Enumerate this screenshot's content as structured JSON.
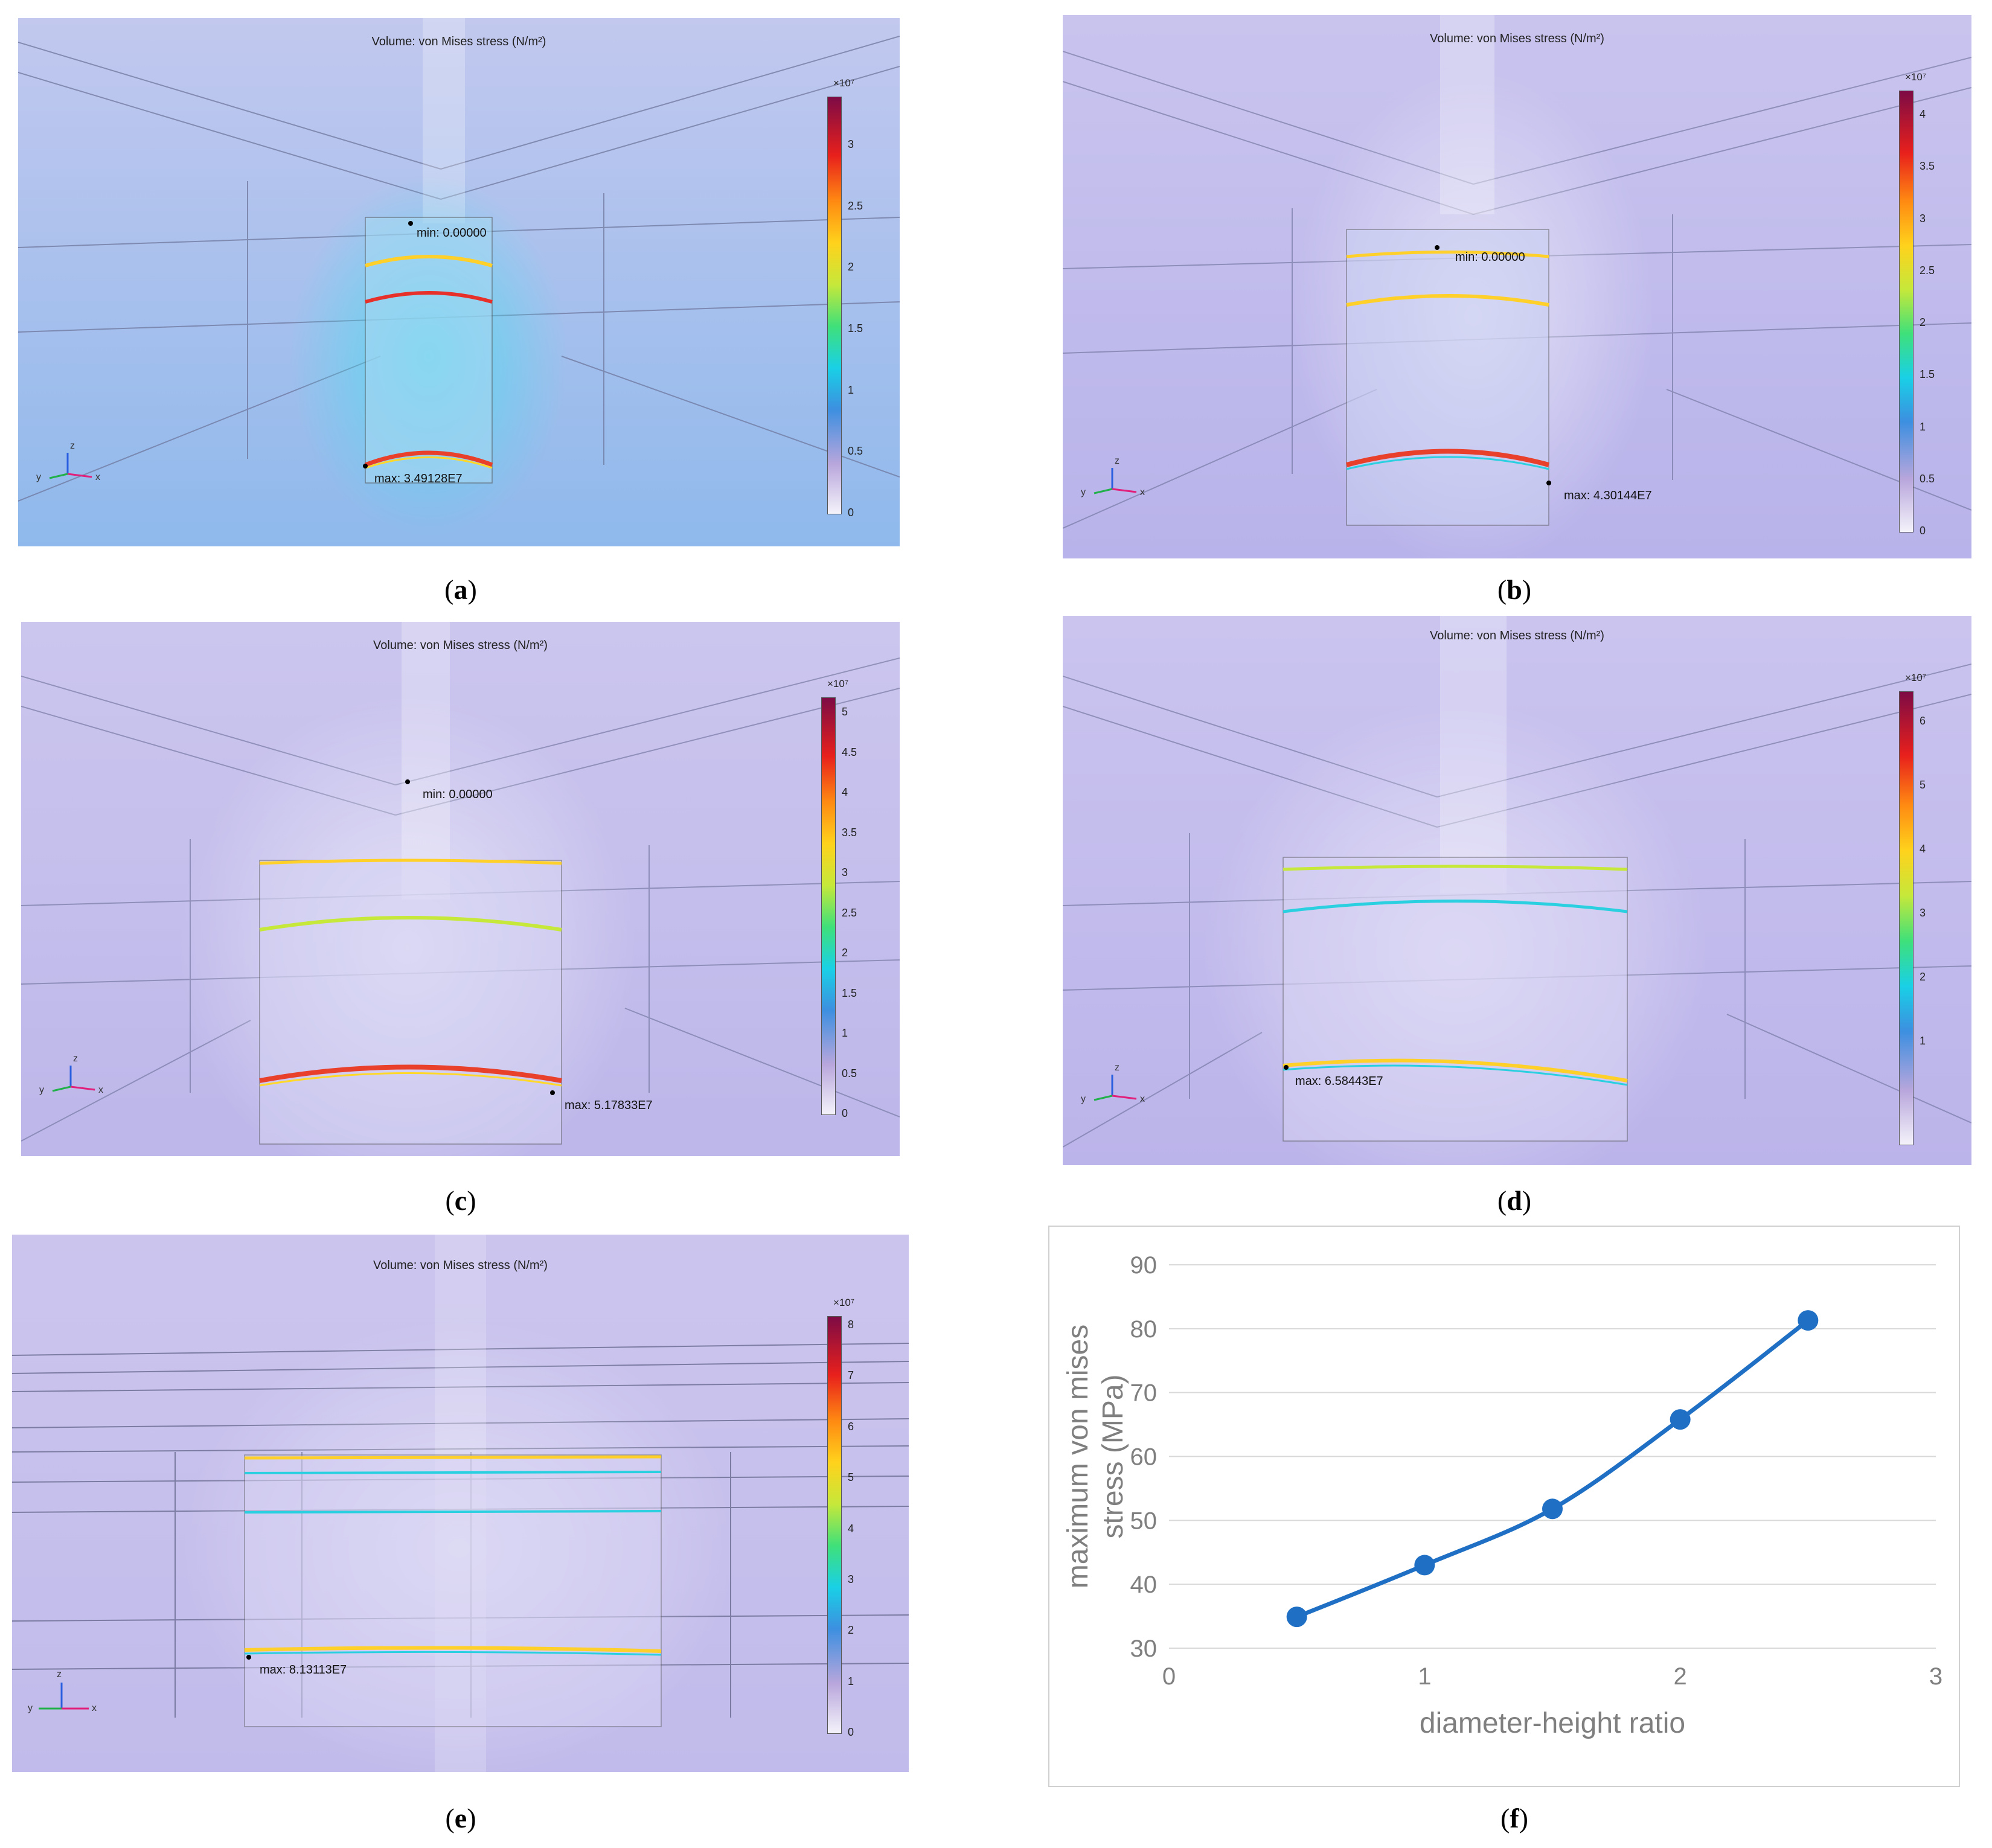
{
  "panels": [
    {
      "id": "a",
      "title": "Volume: von Mises stress (N/m²)",
      "exponent": "×10⁷",
      "ticks": [
        "3",
        "2.5",
        "2",
        "1.5",
        "1",
        "0.5",
        "0"
      ],
      "max_label": "max: 3.49128E7",
      "min_label": "min: 0.00000",
      "caption_letter": "a"
    },
    {
      "id": "b",
      "title": "Volume: von Mises stress (N/m²)",
      "exponent": "×10⁷",
      "ticks": [
        "4",
        "3.5",
        "3",
        "2.5",
        "2",
        "1.5",
        "1",
        "0.5",
        "0"
      ],
      "max_label": "max: 4.30144E7",
      "min_label": "min: 0.00000",
      "caption_letter": "b"
    },
    {
      "id": "c",
      "title": "Volume: von Mises stress (N/m²)",
      "exponent": "×10⁷",
      "ticks": [
        "5",
        "4.5",
        "4",
        "3.5",
        "3",
        "2.5",
        "2",
        "1.5",
        "1",
        "0.5",
        "0"
      ],
      "max_label": "max: 5.17833E7",
      "min_label": "min: 0.00000",
      "caption_letter": "c"
    },
    {
      "id": "d",
      "title": "Volume: von Mises stress (N/m²)",
      "exponent": "×10⁷",
      "ticks": [
        "6",
        "5",
        "4",
        "3",
        "2",
        "1"
      ],
      "max_label": "max: 6.58443E7",
      "min_label": "",
      "caption_letter": "d"
    },
    {
      "id": "e",
      "title": "Volume: von Mises stress (N/m²)",
      "exponent": "×10⁷",
      "ticks": [
        "8",
        "7",
        "6",
        "5",
        "4",
        "3",
        "2",
        "1",
        "0"
      ],
      "max_label": "max: 8.13113E7",
      "min_label": "",
      "caption_letter": "e"
    }
  ],
  "axes_labels": {
    "x": "x",
    "y": "y",
    "z": "z"
  },
  "caption_f": "f",
  "colors": {
    "line": "#1f6fc4",
    "grid": "#d9d9d9",
    "axis_text": "#7f7f7f"
  },
  "chart_data": {
    "type": "line",
    "title": "",
    "xlabel": "diameter-height ratio",
    "ylabel": "maximum von mises stress (MPa)",
    "x": [
      0.5,
      1,
      1.5,
      2,
      2.5
    ],
    "y": [
      34.9,
      43.0,
      51.8,
      65.8,
      81.3
    ],
    "xlim": [
      0,
      3
    ],
    "ylim": [
      30,
      90
    ],
    "xticks": [
      "0",
      "1",
      "2",
      "3"
    ],
    "yticks": [
      "30",
      "40",
      "50",
      "60",
      "70",
      "80",
      "90"
    ],
    "grid": true,
    "markers": true,
    "smooth": true
  }
}
